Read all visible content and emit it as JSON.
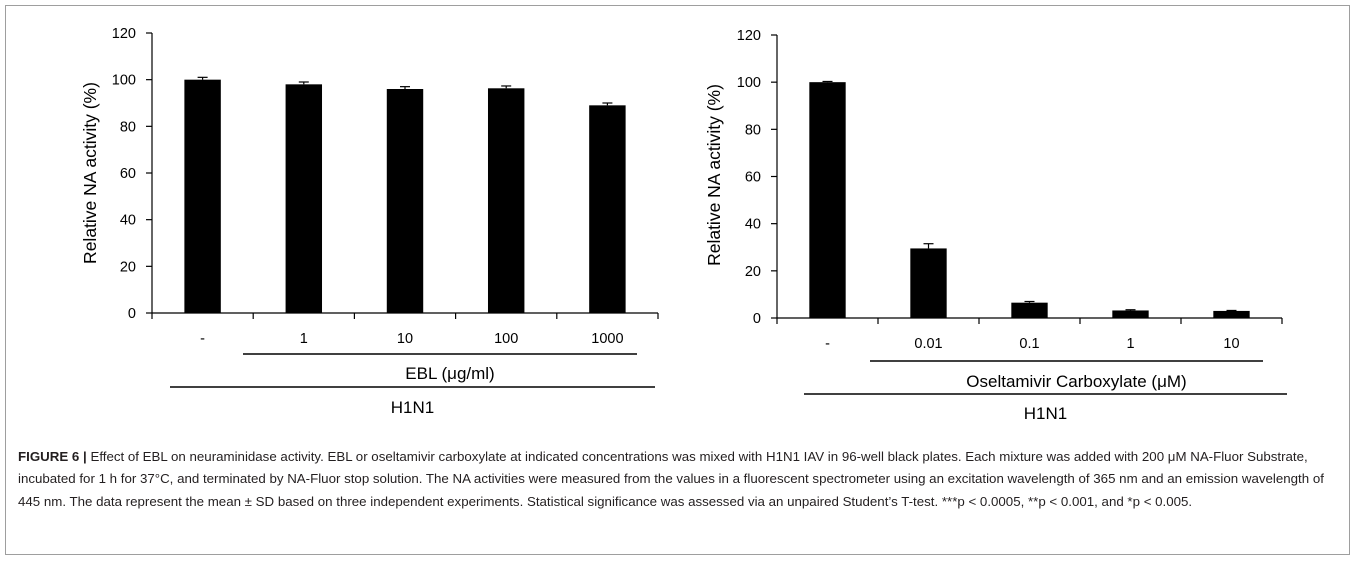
{
  "chart_data": [
    {
      "type": "bar",
      "categories": [
        "-",
        "1",
        "10",
        "100",
        "1000"
      ],
      "values": [
        100,
        98,
        96,
        96.3,
        89
      ],
      "errors": [
        1.0,
        1.0,
        1.0,
        1.0,
        1.0
      ],
      "ylabel": "Relative NA activity (%)",
      "ylim": [
        0,
        120
      ],
      "yticks": [
        0,
        20,
        40,
        60,
        80,
        100,
        120
      ],
      "group_label": "EBL (μg/ml)",
      "outer_label": "H1N1",
      "bar_color": "#000000"
    },
    {
      "type": "bar",
      "categories": [
        "-",
        "0.01",
        "0.1",
        "1",
        "10"
      ],
      "values": [
        100,
        29.5,
        6.5,
        3.2,
        3.0
      ],
      "errors": [
        0.3,
        2.0,
        0.5,
        0.3,
        0.2
      ],
      "ylabel": "Relative NA activity (%)",
      "ylim": [
        0,
        120
      ],
      "yticks": [
        0,
        20,
        40,
        60,
        80,
        100,
        120
      ],
      "group_label": "Oseltamivir Carboxylate (μM)",
      "outer_label": "H1N1",
      "bar_color": "#000000"
    }
  ],
  "caption": {
    "label": "FIGURE 6 |",
    "text": "Effect of EBL on neuraminidase activity. EBL or oseltamivir carboxylate at indicated concentrations was mixed with H1N1 IAV in 96-well black plates. Each mixture was added with 200 μM NA-Fluor Substrate, incubated for 1 h for 37°C, and terminated by NA-Fluor stop solution. The NA activities were measured from the values in a fluorescent spectrometer using an excitation wavelength of 365 nm and an emission wavelength of 445 nm. The data represent the mean ± SD based on three independent experiments. Statistical significance was assessed via an unpaired Student’s T-test. ***p < 0.0005, **p < 0.001, and *p < 0.005."
  }
}
